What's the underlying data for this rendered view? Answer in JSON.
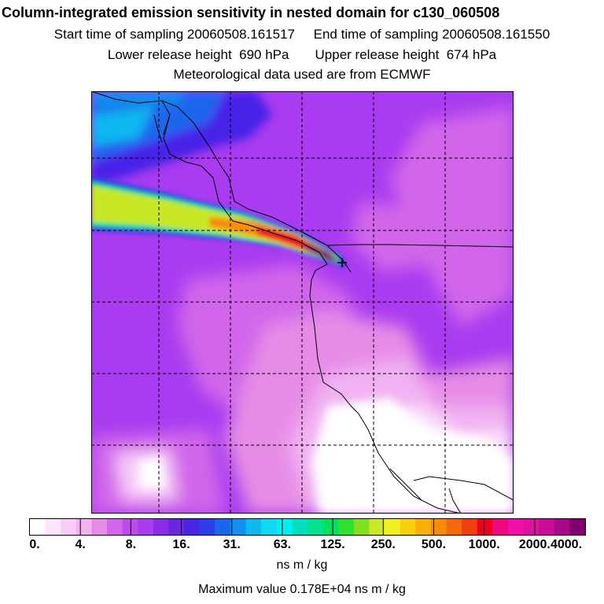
{
  "header": {
    "title": "Column-integrated emission sensitivity in nested domain for c130_060508",
    "sampling_line": "Start time of sampling 20060508.161517     End time of sampling 20060508.161550",
    "release_line": "Lower release height  690 hPa       Upper release height  674 hPa",
    "met_line": "Meteorological data used are from ECMWF"
  },
  "colorbar": {
    "labels": [
      "0.",
      "4.",
      "8.",
      "16.",
      "31.",
      "63.",
      "125.",
      "250.",
      "500.",
      "1000.",
      "2000.",
      "4000."
    ],
    "colors": [
      "#ffffff",
      "#fde6fd",
      "#f8ccf8",
      "#f2b3f2",
      "#e68ce6",
      "#d266ea",
      "#c04bea",
      "#a93cf0",
      "#8a2ce8",
      "#6a26e0",
      "#4624e8",
      "#2e3ee6",
      "#1a66ee",
      "#1090f0",
      "#10b8f0",
      "#10d8f0",
      "#00f0f0",
      "#00e0c0",
      "#00e090",
      "#00e060",
      "#30e030",
      "#80e020",
      "#c8e828",
      "#f0f020",
      "#f8d010",
      "#f8b008",
      "#f88c08",
      "#f86808",
      "#f04010",
      "#f00020",
      "#f00880",
      "#f010a8",
      "#e010a0",
      "#c80c94",
      "#a80888",
      "#800070"
    ],
    "units": "ns m / kg",
    "max_value": "Maximum value  0.178E+04 ns m / kg"
  }
}
